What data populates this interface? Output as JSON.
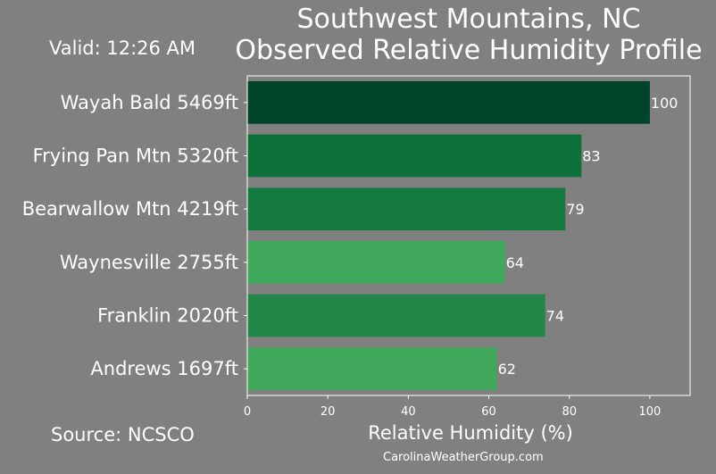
{
  "header": {
    "valid_text": "Valid: 12:26 AM",
    "source_text": "Source: NCSCO",
    "website": "CarolinaWeatherGroup.com"
  },
  "chart_data": {
    "type": "bar",
    "orientation": "horizontal",
    "title_line1": "Southwest Mountains, NC",
    "title_line2": "Observed Relative Humidity Profile",
    "xlabel": "Relative Humidity (%)",
    "ylabel": "",
    "xlim": [
      0,
      110
    ],
    "xticks": [
      0,
      20,
      40,
      60,
      80,
      100
    ],
    "grid": false,
    "categories": [
      "Wayah Bald 5469ft",
      "Frying Pan Mtn 5320ft",
      "Bearwallow Mtn 4219ft",
      "Waynesville 2755ft",
      "Franklin 2020ft",
      "Andrews 1697ft"
    ],
    "values": [
      100,
      83,
      79,
      64,
      74,
      62
    ],
    "data_labels": [
      "100",
      "83",
      "79",
      "64",
      "74",
      "62"
    ],
    "bar_colors": [
      "#00442a",
      "#0b7139",
      "#147a40",
      "#3fa85b",
      "#22884a",
      "#3fa85b"
    ],
    "axis_color": "#ffffff",
    "background": "#808080"
  }
}
